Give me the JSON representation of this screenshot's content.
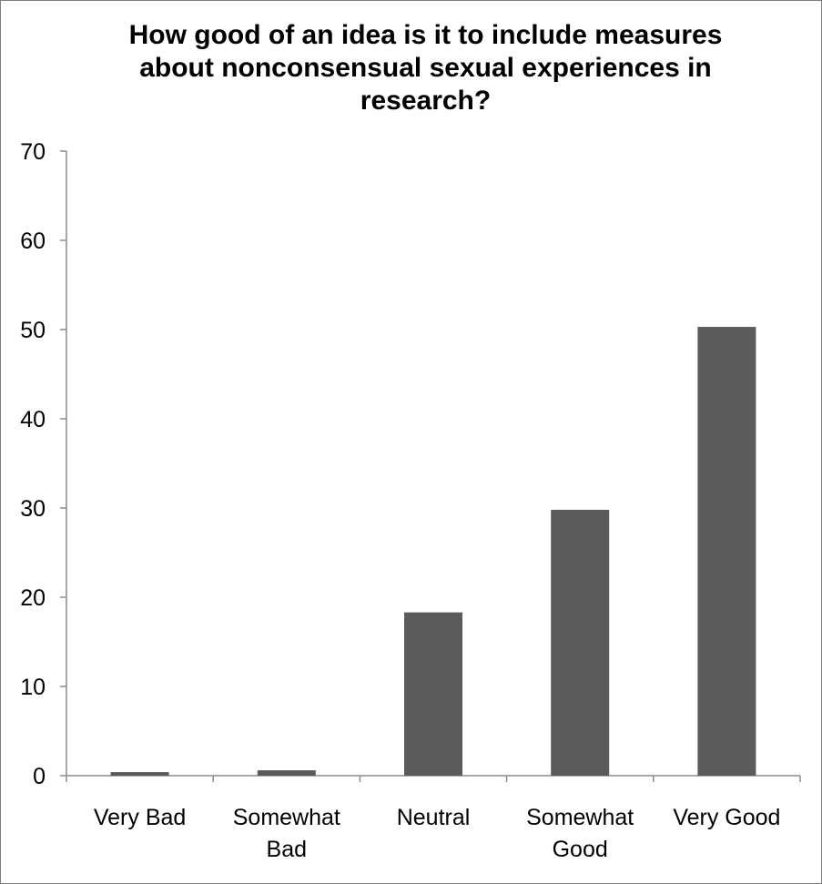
{
  "chart_data": {
    "type": "bar",
    "title": "How good of an idea is it to include measures about nonconsensual sexual experiences in research?",
    "categories": [
      [
        "Very Bad"
      ],
      [
        "Somewhat",
        "Bad"
      ],
      [
        "Neutral"
      ],
      [
        "Somewhat",
        "Good"
      ],
      [
        "Very Good"
      ]
    ],
    "values": [
      0.4,
      0.6,
      18.3,
      29.8,
      50.3
    ],
    "ylim": [
      0,
      70
    ],
    "yticks": [
      "0",
      "10",
      "20",
      "30",
      "40",
      "50",
      "60",
      "70"
    ],
    "xlabel": "",
    "ylabel": "",
    "grid": false,
    "legend": false,
    "colors": {
      "bar": "#5b5b5b",
      "axis": "#8c8c8c",
      "frame": "#7f7f7f"
    }
  }
}
